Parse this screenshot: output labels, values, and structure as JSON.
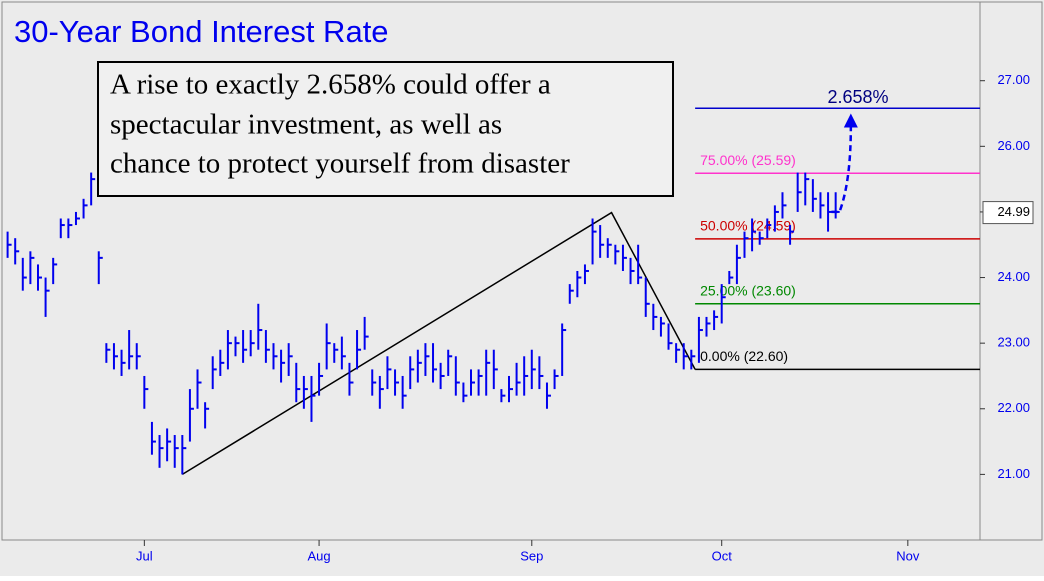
{
  "chart_data": {
    "type": "ohlc",
    "title": "30-Year Bond Interest Rate",
    "annotation": [
      "A rise to exactly 2.658% could offer a",
      "spectacular investment, as well as",
      "chance to protect yourself from disaster"
    ],
    "color": "#0000ee",
    "high": [
      24.7,
      24.6,
      24.3,
      24.4,
      24.2,
      24.0,
      24.3,
      24.9,
      24.9,
      25.0,
      25.2,
      25.6,
      24.4,
      23.0,
      23.0,
      22.9,
      23.2,
      23.0,
      22.5,
      21.8,
      21.6,
      21.7,
      21.6,
      21.6,
      22.3,
      22.6,
      22.1,
      22.8,
      22.9,
      23.2,
      23.1,
      23.2,
      23.2,
      23.6,
      23.2,
      23.0,
      22.9,
      23.0,
      22.7,
      22.5,
      22.5,
      22.7,
      23.3,
      23.0,
      23.1,
      22.7,
      23.2,
      23.4,
      22.6,
      22.5,
      22.8,
      22.6,
      22.5,
      22.8,
      22.9,
      23.0,
      23.0,
      22.7,
      22.9,
      22.8,
      22.4,
      22.6,
      22.6,
      22.9,
      22.9,
      22.3,
      22.5,
      22.7,
      22.8,
      22.9,
      22.8,
      22.4,
      22.6,
      23.3,
      23.9,
      24.1,
      24.2,
      24.9,
      24.8,
      24.6,
      24.5,
      24.5,
      24.3,
      24.5,
      24.0,
      23.6,
      23.4,
      23.3,
      23.0,
      23.0,
      22.9,
      23.4,
      23.4,
      23.5,
      23.9,
      24.1,
      24.5,
      24.7,
      24.9,
      24.7,
      24.9,
      25.1,
      25.3,
      24.8,
      25.6,
      25.6,
      25.5,
      25.3,
      25.3,
      25.3
    ],
    "low": [
      24.3,
      24.2,
      23.8,
      23.9,
      23.8,
      23.4,
      23.9,
      24.6,
      24.6,
      24.8,
      24.9,
      25.1,
      23.9,
      22.7,
      22.6,
      22.5,
      22.6,
      22.6,
      22.0,
      21.3,
      21.1,
      21.2,
      21.1,
      21.0,
      21.5,
      22.0,
      21.7,
      22.3,
      22.5,
      22.6,
      22.8,
      22.7,
      22.8,
      22.9,
      22.7,
      22.6,
      22.4,
      22.5,
      22.1,
      22.0,
      21.8,
      22.2,
      22.6,
      22.7,
      22.6,
      22.2,
      22.6,
      22.9,
      22.2,
      22.0,
      22.3,
      22.2,
      22.0,
      22.3,
      22.4,
      22.5,
      22.4,
      22.3,
      22.5,
      22.2,
      22.1,
      22.2,
      22.2,
      22.2,
      22.3,
      22.1,
      22.1,
      22.2,
      22.2,
      22.3,
      22.3,
      22.0,
      22.3,
      22.5,
      23.6,
      23.7,
      23.9,
      24.2,
      24.3,
      24.3,
      24.2,
      24.1,
      23.9,
      23.9,
      23.4,
      23.2,
      23.1,
      22.9,
      22.7,
      22.6,
      22.6,
      22.7,
      23.1,
      23.2,
      23.3,
      23.9,
      23.9,
      24.3,
      24.4,
      24.5,
      24.6,
      24.7,
      24.9,
      24.5,
      25.0,
      25.1,
      25.0,
      24.9,
      24.7,
      24.9
    ],
    "close": [
      24.5,
      24.4,
      24.0,
      24.3,
      24.0,
      23.8,
      24.2,
      24.8,
      24.8,
      24.9,
      25.1,
      25.5,
      24.3,
      22.9,
      22.8,
      22.7,
      22.8,
      22.8,
      22.3,
      21.5,
      21.4,
      21.5,
      21.4,
      21.4,
      22.0,
      22.4,
      22.0,
      22.6,
      22.7,
      23.0,
      23.0,
      22.9,
      23.0,
      23.2,
      22.9,
      22.8,
      22.7,
      22.8,
      22.3,
      22.3,
      22.2,
      22.5,
      23.0,
      22.9,
      22.8,
      22.4,
      22.9,
      23.1,
      22.4,
      22.3,
      22.6,
      22.4,
      22.2,
      22.6,
      22.7,
      22.8,
      22.6,
      22.5,
      22.8,
      22.4,
      22.2,
      22.4,
      22.5,
      22.7,
      22.6,
      22.2,
      22.3,
      22.4,
      22.5,
      22.6,
      22.5,
      22.2,
      22.5,
      23.2,
      23.8,
      24.0,
      24.1,
      24.7,
      24.5,
      24.5,
      24.4,
      24.3,
      24.1,
      24.0,
      23.6,
      23.4,
      23.3,
      23.0,
      22.9,
      22.8,
      22.8,
      23.2,
      23.3,
      23.4,
      23.7,
      24.0,
      24.3,
      24.6,
      24.7,
      24.6,
      24.8,
      25.0,
      25.1,
      24.7,
      25.3,
      25.5,
      25.2,
      25.1,
      25.0,
      25.0
    ],
    "xlim": [
      0,
      129
    ],
    "xticks": [
      {
        "value": 19,
        "label": "Jul"
      },
      {
        "value": 42,
        "label": "Aug"
      },
      {
        "value": 70,
        "label": "Sep"
      },
      {
        "value": 95,
        "label": "Oct"
      },
      {
        "value": 119.5,
        "label": "Nov"
      }
    ],
    "ylim": [
      20.0,
      28.23
    ],
    "yticks": [
      {
        "value": 21,
        "label": "21.00"
      },
      {
        "value": 22,
        "label": "22.00"
      },
      {
        "value": 23,
        "label": "23.00"
      },
      {
        "value": 24,
        "label": "24.00"
      },
      {
        "value": 25,
        "label": "25.00"
      },
      {
        "value": 26,
        "label": "26.00"
      },
      {
        "value": 27,
        "label": "27.00"
      }
    ],
    "levels": [
      {
        "value": 26.58,
        "label": "2.658%",
        "color": "#0000cc"
      },
      {
        "value": 25.59,
        "label": "75.00% (25.59)",
        "color": "#ff33cc"
      },
      {
        "value": 24.59,
        "label": "50.00% (24.59)",
        "color": "#cc0000"
      },
      {
        "value": 23.6,
        "label": "25.00% (23.60)",
        "color": "#008800"
      },
      {
        "value": 22.6,
        "label": "0.00% (22.60)",
        "color": "#000000"
      }
    ],
    "levels_start": 91.5,
    "trend_x": [
      24,
      80.5,
      91.5
    ],
    "trend_y": [
      21.0,
      24.99,
      22.6
    ],
    "arrow_x": [
      110.5,
      112
    ],
    "arrow_y": [
      25.0,
      26.5
    ],
    "last_price": {
      "value": 24.99,
      "label": "24.99"
    }
  }
}
